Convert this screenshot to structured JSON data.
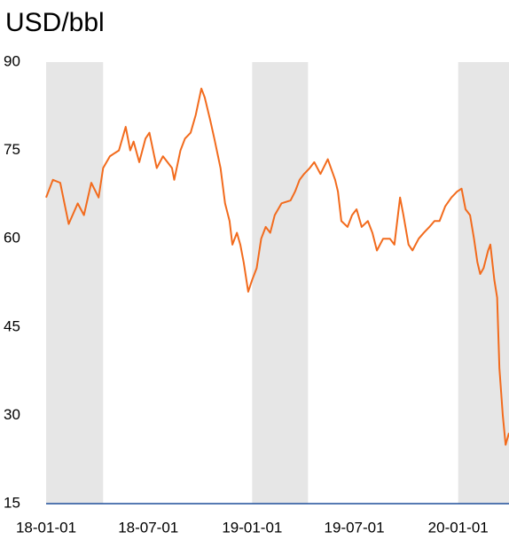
{
  "chart_data": {
    "type": "line",
    "title": "USD/bbl",
    "x": [
      "2018-01-01",
      "2018-01-13",
      "2018-01-26",
      "2018-02-10",
      "2018-02-26",
      "2018-03-09",
      "2018-03-22",
      "2018-04-04",
      "2018-04-12",
      "2018-04-24",
      "2018-05-10",
      "2018-05-22",
      "2018-05-30",
      "2018-06-05",
      "2018-06-15",
      "2018-06-26",
      "2018-07-03",
      "2018-07-16",
      "2018-07-27",
      "2018-08-12",
      "2018-08-16",
      "2018-08-27",
      "2018-09-04",
      "2018-09-14",
      "2018-09-23",
      "2018-10-03",
      "2018-10-09",
      "2018-10-19",
      "2018-10-26",
      "2018-11-06",
      "2018-11-14",
      "2018-11-22",
      "2018-11-27",
      "2018-12-05",
      "2018-12-11",
      "2018-12-17",
      "2018-12-25",
      "2019-01-01",
      "2019-01-09",
      "2019-01-17",
      "2019-01-25",
      "2019-02-02",
      "2019-02-10",
      "2019-02-22",
      "2019-03-10",
      "2019-03-18",
      "2019-03-26",
      "2019-04-03",
      "2019-04-13",
      "2019-04-21",
      "2019-05-02",
      "2019-05-15",
      "2019-05-28",
      "2019-06-02",
      "2019-06-08",
      "2019-06-19",
      "2019-06-27",
      "2019-07-05",
      "2019-07-14",
      "2019-07-25",
      "2019-08-02",
      "2019-08-10",
      "2019-08-21",
      "2019-09-02",
      "2019-09-10",
      "2019-09-20",
      "2019-09-26",
      "2019-10-05",
      "2019-10-12",
      "2019-10-23",
      "2019-11-01",
      "2019-11-11",
      "2019-11-20",
      "2019-11-29",
      "2019-12-09",
      "2019-12-20",
      "2019-12-30",
      "2020-01-07",
      "2020-01-14",
      "2020-01-22",
      "2020-01-29",
      "2020-02-04",
      "2020-02-09",
      "2020-02-15",
      "2020-02-23",
      "2020-02-27",
      "2020-03-05",
      "2020-03-10",
      "2020-03-14",
      "2020-03-17",
      "2020-03-20",
      "2020-03-25",
      "2020-03-31"
    ],
    "series": [
      {
        "color": "#f26b1d",
        "values": [
          67,
          70,
          69.5,
          62.5,
          66,
          64,
          69.5,
          67,
          72,
          74,
          75,
          79,
          75,
          76.5,
          73,
          77,
          78,
          72,
          74,
          72,
          70,
          75,
          77,
          78,
          81,
          85.5,
          84,
          80,
          77,
          72,
          66,
          63,
          59,
          61,
          59,
          56,
          51,
          53,
          55,
          60,
          62,
          61,
          64,
          66,
          66.5,
          68,
          70,
          71,
          72,
          73,
          71,
          73.5,
          70,
          68,
          63,
          62,
          64,
          65,
          62,
          63,
          61,
          58,
          60,
          60,
          59,
          67,
          64,
          59,
          58,
          60,
          61,
          62,
          63,
          63,
          65.5,
          67,
          68,
          68.5,
          65,
          64,
          60,
          56,
          54,
          55,
          58,
          59,
          53,
          50,
          38,
          34,
          30,
          25,
          27
        ]
      }
    ],
    "xlim": [
      "2018-01-01",
      "2020-03-31"
    ],
    "xticks": [
      {
        "value": "2018-01-01",
        "label": "18-01-01"
      },
      {
        "value": "2018-07-01",
        "label": "18-07-01"
      },
      {
        "value": "2019-01-01",
        "label": "19-01-01"
      },
      {
        "value": "2019-07-01",
        "label": "19-07-01"
      },
      {
        "value": "2020-01-01",
        "label": "20-01-01"
      }
    ],
    "ylim": [
      15,
      90
    ],
    "yticks": [
      15,
      30,
      45,
      60,
      75,
      90
    ],
    "shaded_ranges": [
      [
        "2018-01-01",
        "2018-04-12"
      ],
      [
        "2019-01-01",
        "2019-04-10"
      ],
      [
        "2020-01-01",
        "2020-03-31"
      ]
    ],
    "shade_color": "#e6e6e6",
    "axis_color": "#1f4e9a",
    "grid": false
  }
}
